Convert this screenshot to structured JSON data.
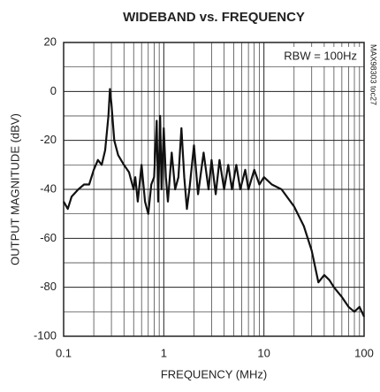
{
  "chart_data": {
    "type": "line",
    "title": "WIDEBAND vs. FREQUENCY",
    "x_label": "FREQUENCY (MHz)",
    "y_label": "OUTPUT MAGNITUDE (dBV)",
    "annotations": [
      "RBW = 100Hz",
      "MAX98303 toc27"
    ],
    "x_scale": "log",
    "grid": true,
    "xlim": [
      0.1,
      100
    ],
    "xticks": [
      0.1,
      1,
      10,
      100
    ],
    "ylim": [
      -100,
      20
    ],
    "yticks": [
      20,
      0,
      -20,
      -40,
      -60,
      -80,
      -100
    ],
    "series": [
      {
        "name": "Wideband",
        "color": "#111111",
        "x": [
          0.1,
          0.11,
          0.12,
          0.14,
          0.16,
          0.18,
          0.2,
          0.22,
          0.24,
          0.26,
          0.28,
          0.29,
          0.3,
          0.32,
          0.35,
          0.4,
          0.45,
          0.5,
          0.52,
          0.55,
          0.6,
          0.65,
          0.7,
          0.75,
          0.8,
          0.85,
          0.88,
          0.92,
          0.95,
          1.0,
          1.05,
          1.1,
          1.2,
          1.3,
          1.4,
          1.5,
          1.6,
          1.7,
          1.8,
          2.0,
          2.2,
          2.5,
          2.8,
          3.0,
          3.3,
          3.6,
          4.0,
          4.4,
          4.8,
          5.3,
          5.8,
          6.5,
          7,
          8,
          9,
          10,
          12,
          15,
          20,
          25,
          30,
          35,
          40,
          45,
          50,
          60,
          70,
          80,
          90,
          100
        ],
        "values": [
          -45,
          -48,
          -43,
          -40,
          -38,
          -38,
          -32,
          -28,
          -30,
          -24,
          -10,
          1,
          -5,
          -20,
          -26,
          -30,
          -33,
          -40,
          -35,
          -45,
          -30,
          -45,
          -50,
          -38,
          -35,
          -12,
          -45,
          -10,
          -40,
          -15,
          -35,
          -45,
          -25,
          -40,
          -35,
          -15,
          -35,
          -48,
          -40,
          -22,
          -42,
          -25,
          -40,
          -28,
          -42,
          -28,
          -40,
          -30,
          -40,
          -30,
          -40,
          -32,
          -40,
          -32,
          -38,
          -35,
          -38,
          -40,
          -47,
          -55,
          -65,
          -78,
          -75,
          -77,
          -80,
          -84,
          -88,
          -90,
          -88,
          -92
        ]
      }
    ]
  }
}
